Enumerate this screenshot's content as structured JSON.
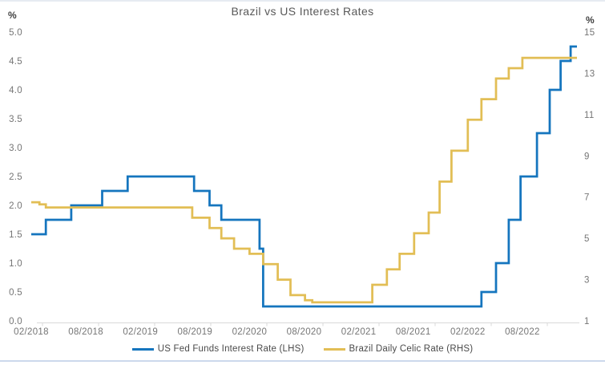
{
  "chart_data": {
    "type": "line",
    "subtype": "step",
    "title": "Brazil vs US Interest Rates",
    "title_color": "#595959",
    "grid": false,
    "legend_position": "bottom",
    "axis_color": "#d9d9d9",
    "left_axis": {
      "label": "%",
      "min": 0,
      "max": 5,
      "ticks": [
        "5.0",
        "4.5",
        "4.0",
        "3.5",
        "3.0",
        "2.5",
        "2.0",
        "1.5",
        "1.0",
        "0.5",
        "0.0"
      ]
    },
    "right_axis": {
      "label": "%",
      "min": 1,
      "max": 15,
      "ticks": [
        "15",
        "13",
        "11",
        "9",
        "7",
        "5",
        "3",
        "1"
      ]
    },
    "x_axis": {
      "ticks": [
        "02/2018",
        "08/2018",
        "02/2019",
        "08/2019",
        "02/2020",
        "08/2020",
        "02/2021",
        "08/2021",
        "02/2022",
        "08/2022"
      ],
      "start": "02/2018",
      "end": "02/2023",
      "months_span": 60
    },
    "series": [
      {
        "name": "US Fed Funds Interest Rate (LHS)",
        "axis": "left",
        "color": "#1575BE",
        "points_format": [
          "months_since_02_2018",
          "value_pct",
          "date"
        ],
        "points": [
          [
            0,
            1.5,
            "02/2018"
          ],
          [
            1.6,
            1.75,
            "03/2018"
          ],
          [
            4.4,
            2.0,
            "06/2018"
          ],
          [
            7.8,
            2.25,
            "09/2018"
          ],
          [
            10.6,
            2.5,
            "12/2018"
          ],
          [
            17.9,
            2.25,
            "08/2019"
          ],
          [
            19.6,
            2.0,
            "09/2019"
          ],
          [
            20.9,
            1.75,
            "10/2019"
          ],
          [
            25.1,
            1.25,
            "03/2020"
          ],
          [
            25.5,
            0.25,
            "03/2020"
          ],
          [
            49.5,
            0.5,
            "03/2022"
          ],
          [
            51.1,
            1.0,
            "05/2022"
          ],
          [
            52.5,
            1.75,
            "06/2022"
          ],
          [
            53.8,
            2.5,
            "07/2022"
          ],
          [
            55.6,
            3.25,
            "09/2022"
          ],
          [
            57.0,
            4.0,
            "11/2022"
          ],
          [
            58.2,
            4.5,
            "12/2022"
          ],
          [
            59.3,
            4.75,
            "02/2023"
          ]
        ]
      },
      {
        "name": "Brazil Daily Celic Rate (RHS)",
        "axis": "right",
        "color": "#E2BE55",
        "points_format": [
          "months_since_02_2018",
          "value_pct",
          "date"
        ],
        "points": [
          [
            0,
            6.75,
            "02/2018"
          ],
          [
            0.9,
            6.65,
            "02/2018"
          ],
          [
            1.6,
            6.5,
            "03/2018"
          ],
          [
            17.7,
            6.0,
            "08/2019"
          ],
          [
            19.6,
            5.5,
            "09/2019"
          ],
          [
            20.9,
            5.0,
            "11/2019"
          ],
          [
            22.3,
            4.5,
            "12/2019"
          ],
          [
            24.0,
            4.25,
            "02/2020"
          ],
          [
            25.5,
            3.75,
            "03/2020"
          ],
          [
            27.1,
            3.0,
            "05/2020"
          ],
          [
            28.5,
            2.25,
            "06/2020"
          ],
          [
            30.1,
            2.0,
            "08/2020"
          ],
          [
            30.9,
            1.9,
            "09/2020"
          ],
          [
            37.5,
            2.75,
            "03/2021"
          ],
          [
            39.1,
            3.5,
            "05/2021"
          ],
          [
            40.5,
            4.25,
            "06/2021"
          ],
          [
            42.1,
            5.25,
            "08/2021"
          ],
          [
            43.7,
            6.25,
            "09/2021"
          ],
          [
            44.9,
            7.75,
            "10/2021"
          ],
          [
            46.2,
            9.25,
            "12/2021"
          ],
          [
            48.0,
            10.75,
            "02/2022"
          ],
          [
            49.5,
            11.75,
            "03/2022"
          ],
          [
            51.1,
            12.75,
            "05/2022"
          ],
          [
            52.5,
            13.25,
            "06/2022"
          ],
          [
            54.0,
            13.75,
            "08/2022"
          ]
        ]
      }
    ]
  }
}
